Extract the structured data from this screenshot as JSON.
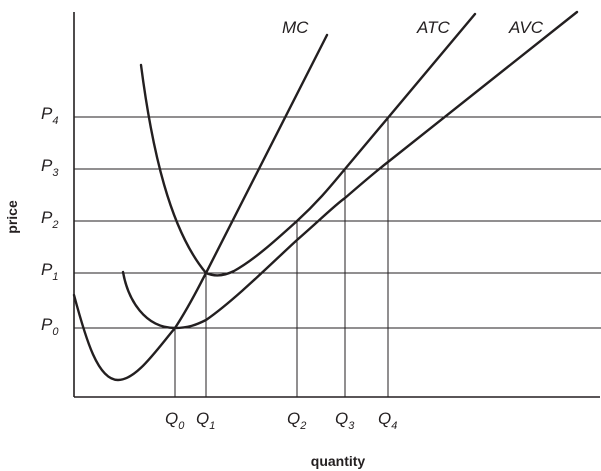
{
  "axes": {
    "y_title": "price",
    "x_title": "quantity"
  },
  "curves": {
    "mc": "MC",
    "atc": "ATC",
    "avc": "AVC"
  },
  "price_levels": [
    {
      "letter": "P",
      "sub": "0"
    },
    {
      "letter": "P",
      "sub": "1"
    },
    {
      "letter": "P",
      "sub": "2"
    },
    {
      "letter": "P",
      "sub": "3"
    },
    {
      "letter": "P",
      "sub": "4"
    }
  ],
  "quantity_levels": [
    {
      "letter": "Q",
      "sub": "0"
    },
    {
      "letter": "Q",
      "sub": "1"
    },
    {
      "letter": "Q",
      "sub": "2"
    },
    {
      "letter": "Q",
      "sub": "3"
    },
    {
      "letter": "Q",
      "sub": "4"
    }
  ]
}
